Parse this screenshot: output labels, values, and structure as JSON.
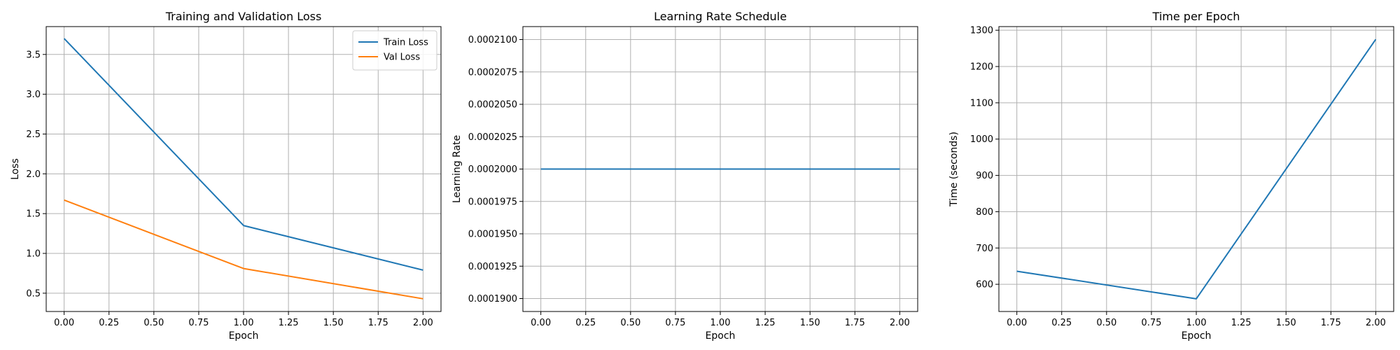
{
  "chart_data": [
    {
      "type": "line",
      "title": "Training and Validation Loss",
      "xlabel": "Epoch",
      "ylabel": "Loss",
      "xlim": [
        -0.1,
        2.1
      ],
      "ylim": [
        0.27,
        3.85
      ],
      "xticks": [
        "0.00",
        "0.25",
        "0.50",
        "0.75",
        "1.00",
        "1.25",
        "1.50",
        "1.75",
        "2.00"
      ],
      "yticks": [
        "0.5",
        "1.0",
        "1.5",
        "2.0",
        "2.5",
        "3.0",
        "3.5"
      ],
      "grid": true,
      "legend": "top-right",
      "series": [
        {
          "name": "Train Loss",
          "color": "#1f77b4",
          "x": [
            0,
            1,
            2
          ],
          "y": [
            3.7,
            1.35,
            0.79
          ]
        },
        {
          "name": "Val Loss",
          "color": "#ff7f0e",
          "x": [
            0,
            1,
            2
          ],
          "y": [
            1.67,
            0.81,
            0.43
          ]
        }
      ]
    },
    {
      "type": "line",
      "title": "Learning Rate Schedule",
      "xlabel": "Epoch",
      "ylabel": "Learning Rate",
      "xlim": [
        -0.1,
        2.1
      ],
      "ylim": [
        0.000189,
        0.000211
      ],
      "xticks": [
        "0.00",
        "0.25",
        "0.50",
        "0.75",
        "1.00",
        "1.25",
        "1.50",
        "1.75",
        "2.00"
      ],
      "yticks": [
        "0.0001900",
        "0.0001925",
        "0.0001950",
        "0.0001975",
        "0.0002000",
        "0.0002025",
        "0.0002050",
        "0.0002075",
        "0.0002100"
      ],
      "grid": true,
      "series": [
        {
          "color": "#1f77b4",
          "x": [
            0,
            1,
            2
          ],
          "y": [
            0.0002,
            0.0002,
            0.0002
          ]
        }
      ]
    },
    {
      "type": "line",
      "title": "Time per Epoch",
      "xlabel": "Epoch",
      "ylabel": "Time (seconds)",
      "xlim": [
        -0.1,
        2.1
      ],
      "ylim": [
        525,
        1310
      ],
      "xticks": [
        "0.00",
        "0.25",
        "0.50",
        "0.75",
        "1.00",
        "1.25",
        "1.50",
        "1.75",
        "2.00"
      ],
      "yticks": [
        "600",
        "700",
        "800",
        "900",
        "1000",
        "1100",
        "1200",
        "1300"
      ],
      "grid": true,
      "series": [
        {
          "color": "#1f77b4",
          "x": [
            0,
            1,
            2
          ],
          "y": [
            636,
            560,
            1275
          ]
        }
      ]
    }
  ]
}
